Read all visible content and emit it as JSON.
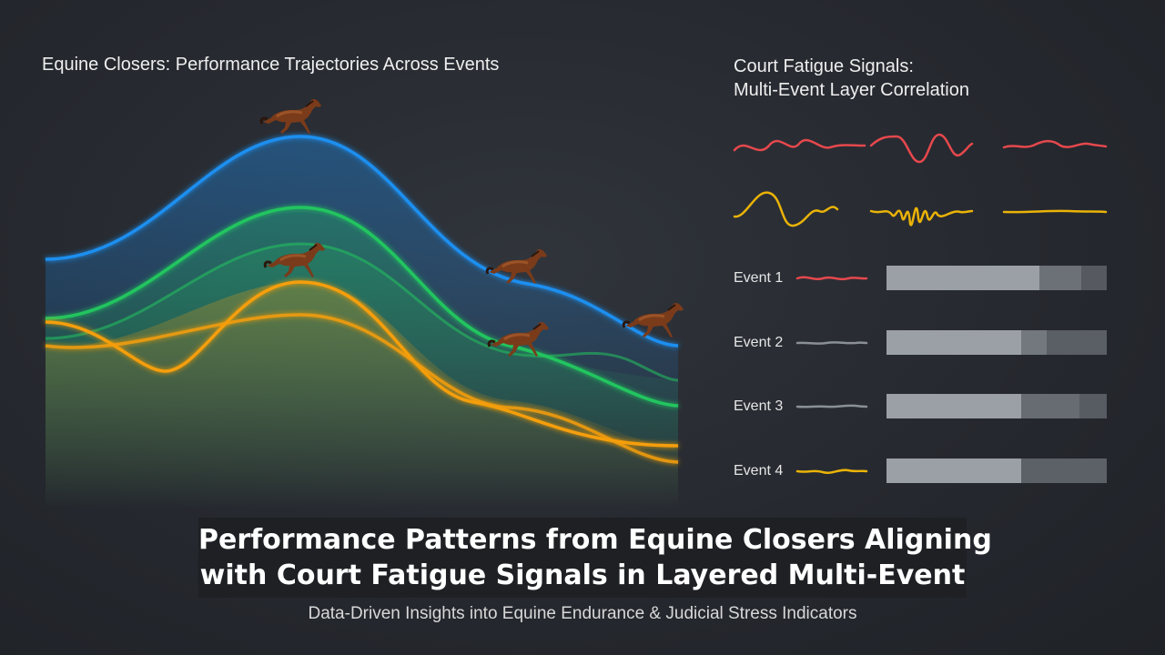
{
  "left_panel": {
    "title": "Equine Closers: Performance Trajectories Across Events",
    "curve_colors": [
      "#1e8ff0",
      "#22c55e",
      "#f59e0b"
    ]
  },
  "right_panel": {
    "title_line1": "Court Fatigue Signals:",
    "title_line2": "Multi-Event Layer Correlation",
    "signal_colors": {
      "red": "#e5484d",
      "yellow": "#eab308",
      "gray": "#8a9096"
    },
    "events": [
      {
        "label": "Event 1",
        "color": "#e5484d"
      },
      {
        "label": "Event 2",
        "color": "#8a9096"
      },
      {
        "label": "Event 3",
        "color": "#8a9096"
      },
      {
        "label": "Event 4",
        "color": "#eab308"
      }
    ]
  },
  "headline": {
    "line1": "Performance Patterns from Equine Closers Aligning",
    "line2": "with Court Fatigue Signals in Layered Multi-Event"
  },
  "subtitle": "Data-Driven Insights into Equine Endurance & Judicial Stress Indicators",
  "icons": [
    "horse-icon"
  ]
}
